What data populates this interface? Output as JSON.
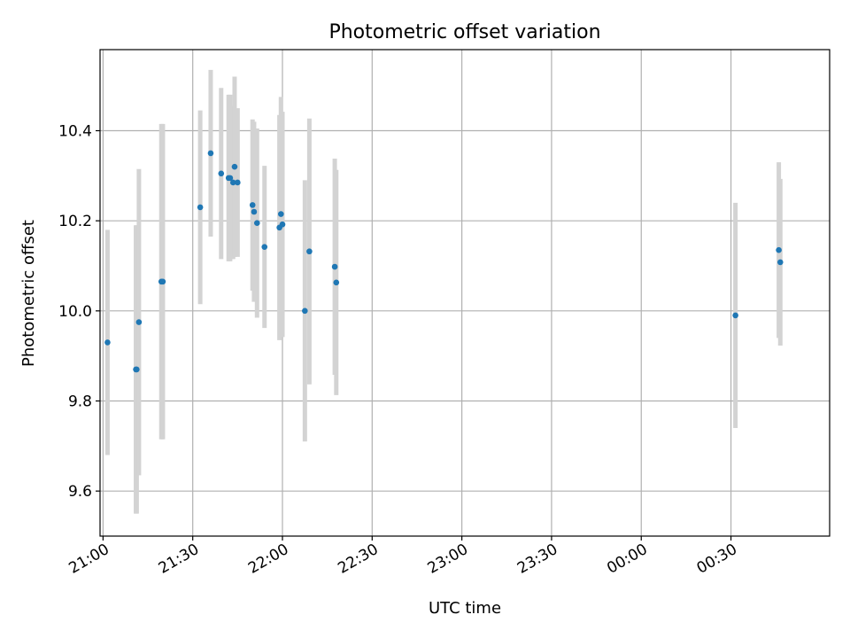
{
  "chart_data": {
    "type": "scatter",
    "title": "Photometric offset variation",
    "xlabel": "UTC time",
    "ylabel": "Photometric offset",
    "x_tick_labels": [
      "21:00",
      "21:30",
      "22:00",
      "22:30",
      "23:00",
      "23:30",
      "00:00",
      "00:30"
    ],
    "y_ticks": [
      9.6,
      9.8,
      10.0,
      10.2,
      10.4
    ],
    "xlim": [
      "20:59",
      "01:03"
    ],
    "ylim": [
      9.5,
      10.58
    ],
    "grid": true,
    "colors": {
      "point": "#1f77b4",
      "errorbar": "#d3d3d3",
      "grid": "#b0b0b0"
    },
    "points": [
      {
        "x": "21:01:30",
        "y": 9.93,
        "yerr": 0.25
      },
      {
        "x": "21:11:00",
        "y": 9.87,
        "yerr": 0.32
      },
      {
        "x": "21:11:15",
        "y": 9.87,
        "yerr": 0.32
      },
      {
        "x": "21:12:00",
        "y": 9.975,
        "yerr": 0.34
      },
      {
        "x": "21:19:30",
        "y": 10.065,
        "yerr": 0.35
      },
      {
        "x": "21:20:00",
        "y": 10.065,
        "yerr": 0.35
      },
      {
        "x": "21:32:30",
        "y": 10.23,
        "yerr": 0.215
      },
      {
        "x": "21:36:00",
        "y": 10.35,
        "yerr": 0.185
      },
      {
        "x": "21:39:30",
        "y": 10.305,
        "yerr": 0.19
      },
      {
        "x": "21:42:00",
        "y": 10.295,
        "yerr": 0.185
      },
      {
        "x": "21:42:30",
        "y": 10.295,
        "yerr": 0.185
      },
      {
        "x": "21:43:30",
        "y": 10.285,
        "yerr": 0.17
      },
      {
        "x": "21:44:00",
        "y": 10.32,
        "yerr": 0.2
      },
      {
        "x": "21:45:00",
        "y": 10.285,
        "yerr": 0.165
      },
      {
        "x": "21:50:00",
        "y": 10.235,
        "yerr": 0.19
      },
      {
        "x": "21:50:30",
        "y": 10.22,
        "yerr": 0.2
      },
      {
        "x": "21:51:30",
        "y": 10.195,
        "yerr": 0.21
      },
      {
        "x": "21:54:00",
        "y": 10.142,
        "yerr": 0.18
      },
      {
        "x": "21:59:00",
        "y": 10.185,
        "yerr": 0.25
      },
      {
        "x": "21:59:30",
        "y": 10.215,
        "yerr": 0.26
      },
      {
        "x": "22:00:00",
        "y": 10.192,
        "yerr": 0.25
      },
      {
        "x": "22:07:30",
        "y": 10.0,
        "yerr": 0.29
      },
      {
        "x": "22:09:00",
        "y": 10.132,
        "yerr": 0.295
      },
      {
        "x": "22:17:30",
        "y": 10.098,
        "yerr": 0.24
      },
      {
        "x": "22:18:00",
        "y": 10.063,
        "yerr": 0.25
      },
      {
        "x": "00:31:30",
        "y": 9.99,
        "yerr": 0.25
      },
      {
        "x": "00:46:00",
        "y": 10.135,
        "yerr": 0.195
      },
      {
        "x": "00:46:30",
        "y": 10.108,
        "yerr": 0.185
      }
    ]
  }
}
